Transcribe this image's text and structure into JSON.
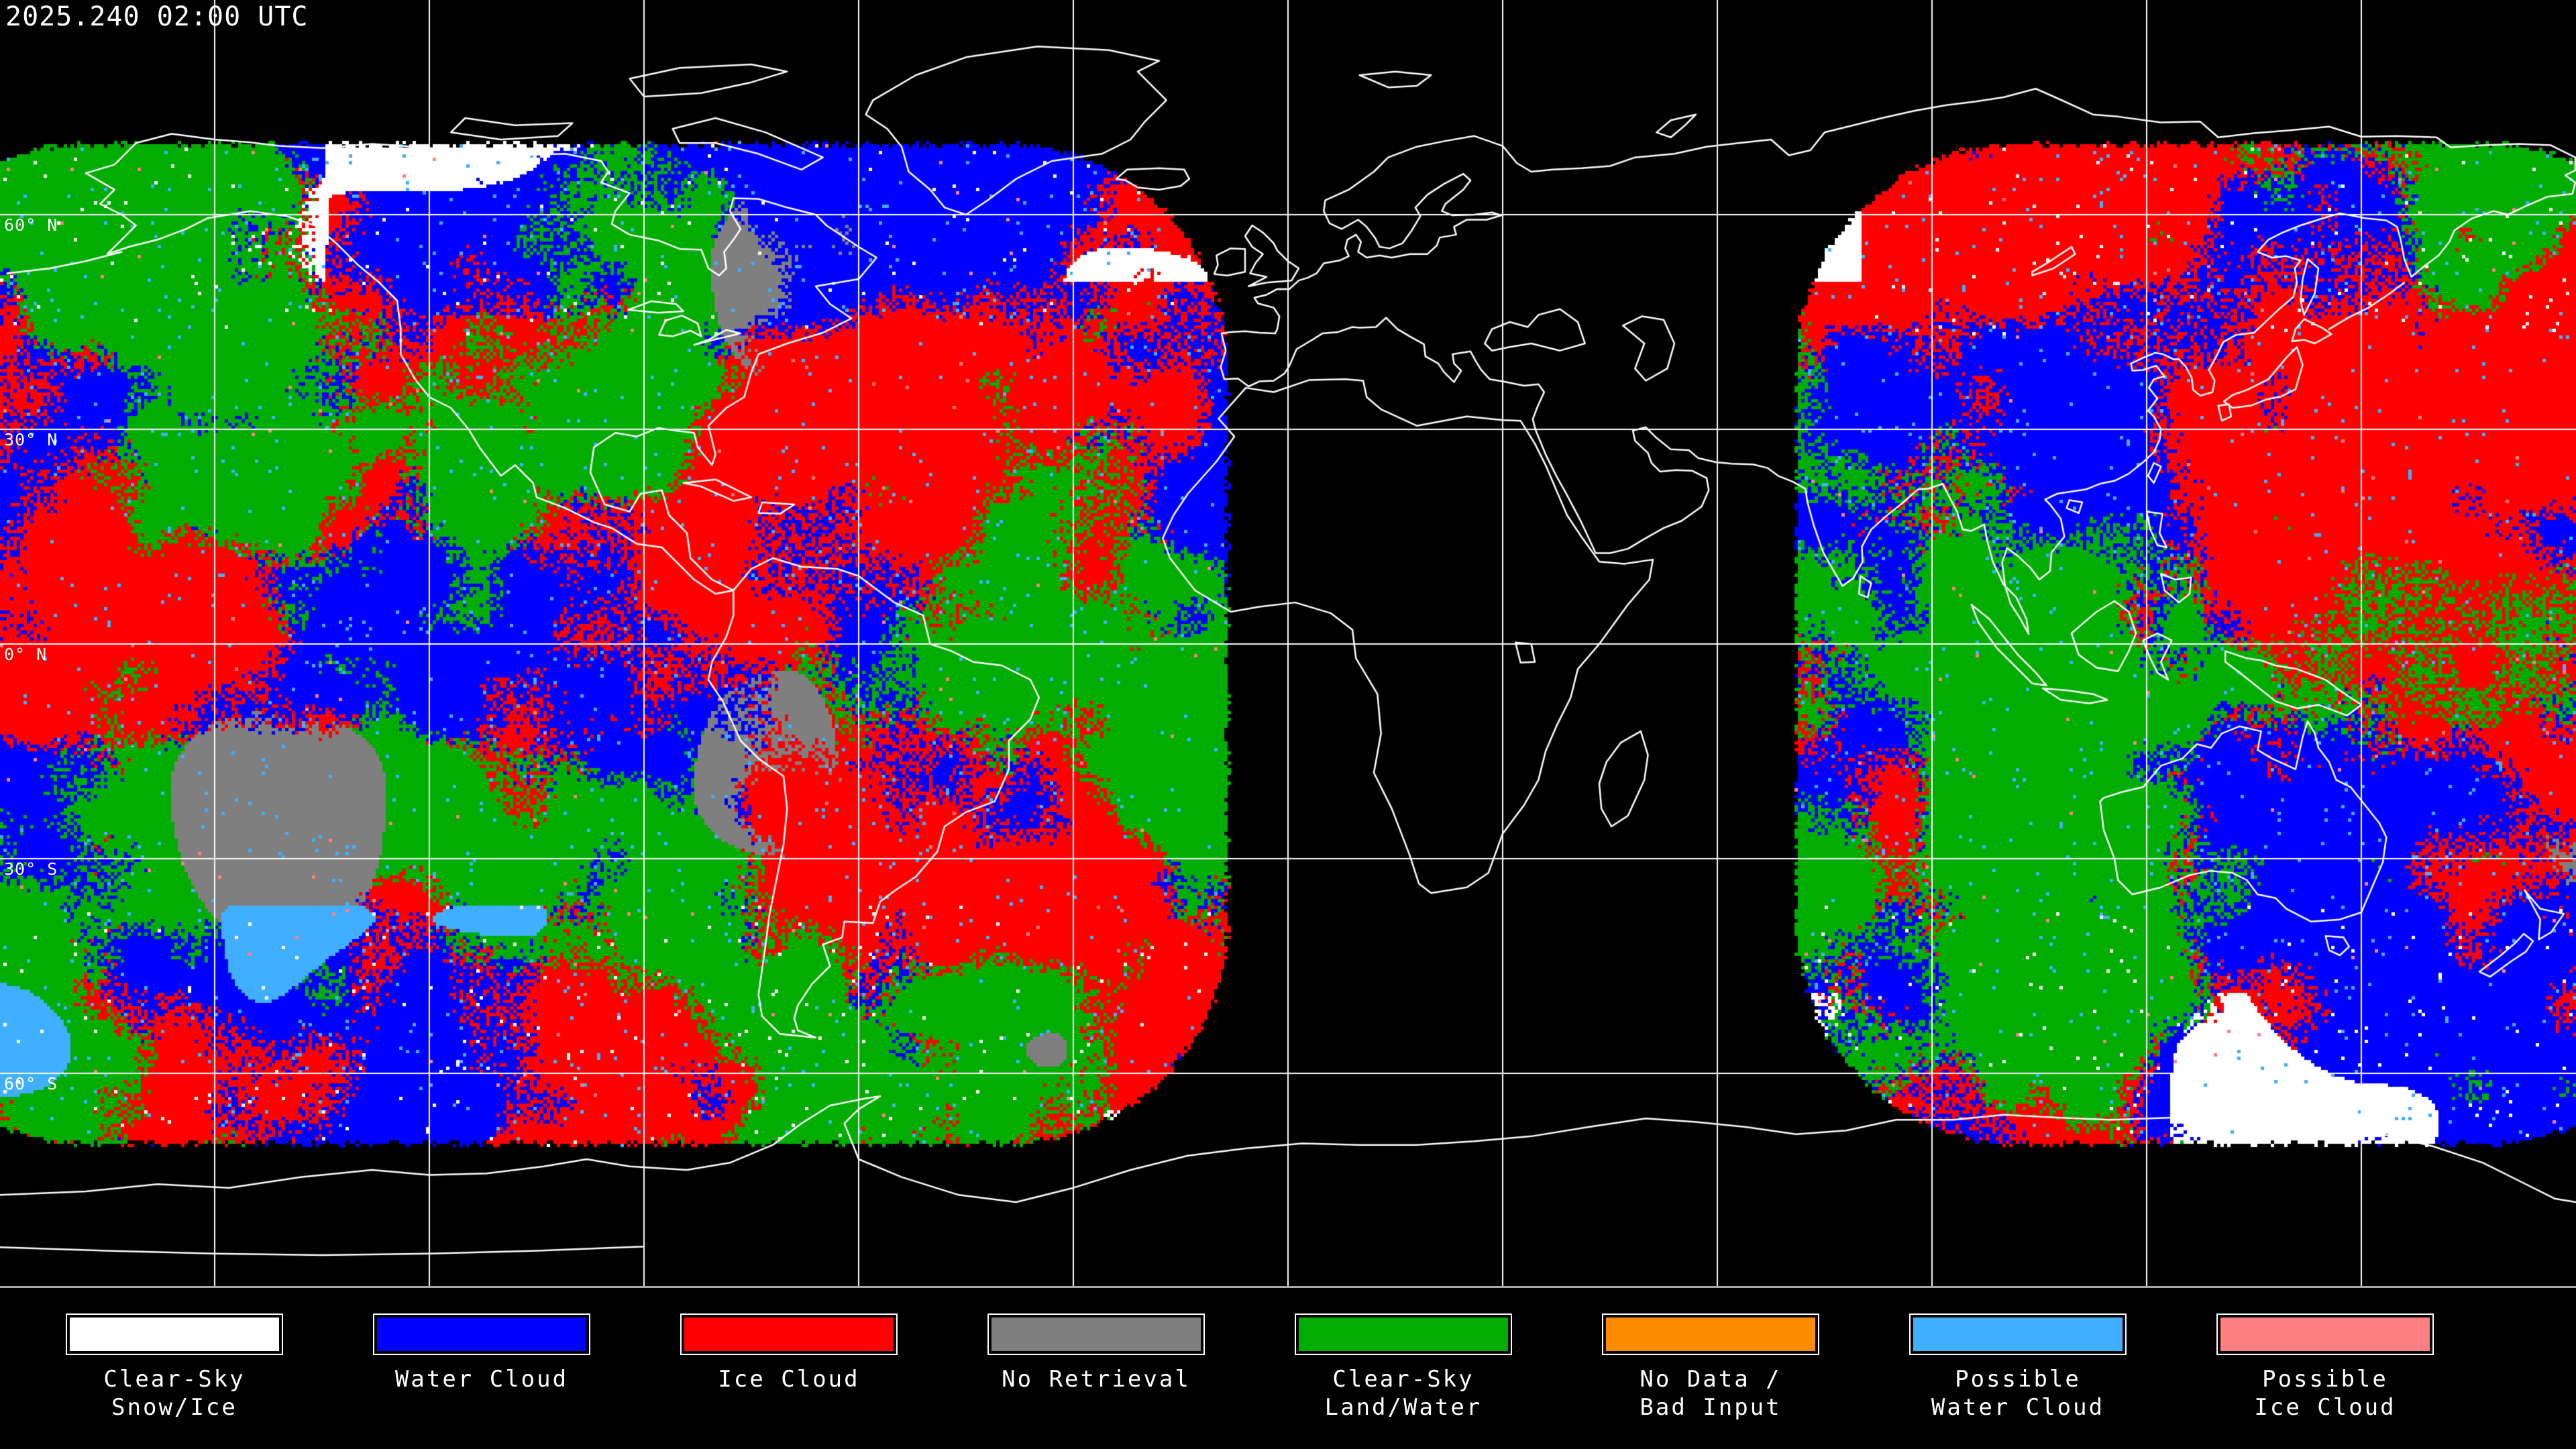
{
  "map": {
    "timestamp": "2025.240 02:00 UTC",
    "latitude_labels": [
      "60° N",
      "30° N",
      "0° N",
      "30° S",
      "60° S"
    ],
    "graticule_interval_degrees": 30,
    "background_color": "#000000",
    "coastline_color": "#ffffff",
    "grid_color": "#ffffff"
  },
  "legend": {
    "items": [
      {
        "label": "Clear-Sky Snow/Ice",
        "lines": [
          "Clear-Sky",
          "Snow/Ice"
        ],
        "color": "#ffffff"
      },
      {
        "label": "Water Cloud",
        "lines": [
          "Water Cloud"
        ],
        "color": "#0000ff"
      },
      {
        "label": "Ice Cloud",
        "lines": [
          "Ice Cloud"
        ],
        "color": "#ff0000"
      },
      {
        "label": "No Retrieval",
        "lines": [
          "No Retrieval"
        ],
        "color": "#7f7f7f"
      },
      {
        "label": "Clear-Sky Land/Water",
        "lines": [
          "Clear-Sky",
          "Land/Water"
        ],
        "color": "#00ad00"
      },
      {
        "label": "No Data / Bad Input",
        "lines": [
          "No Data /",
          "Bad Input"
        ],
        "color": "#ff8c00"
      },
      {
        "label": "Possible Water Cloud",
        "lines": [
          "Possible",
          "Water Cloud"
        ],
        "color": "#41afff"
      },
      {
        "label": "Possible Ice Cloud",
        "lines": [
          "Possible",
          "Ice Cloud"
        ],
        "color": "#ff8080"
      }
    ]
  }
}
